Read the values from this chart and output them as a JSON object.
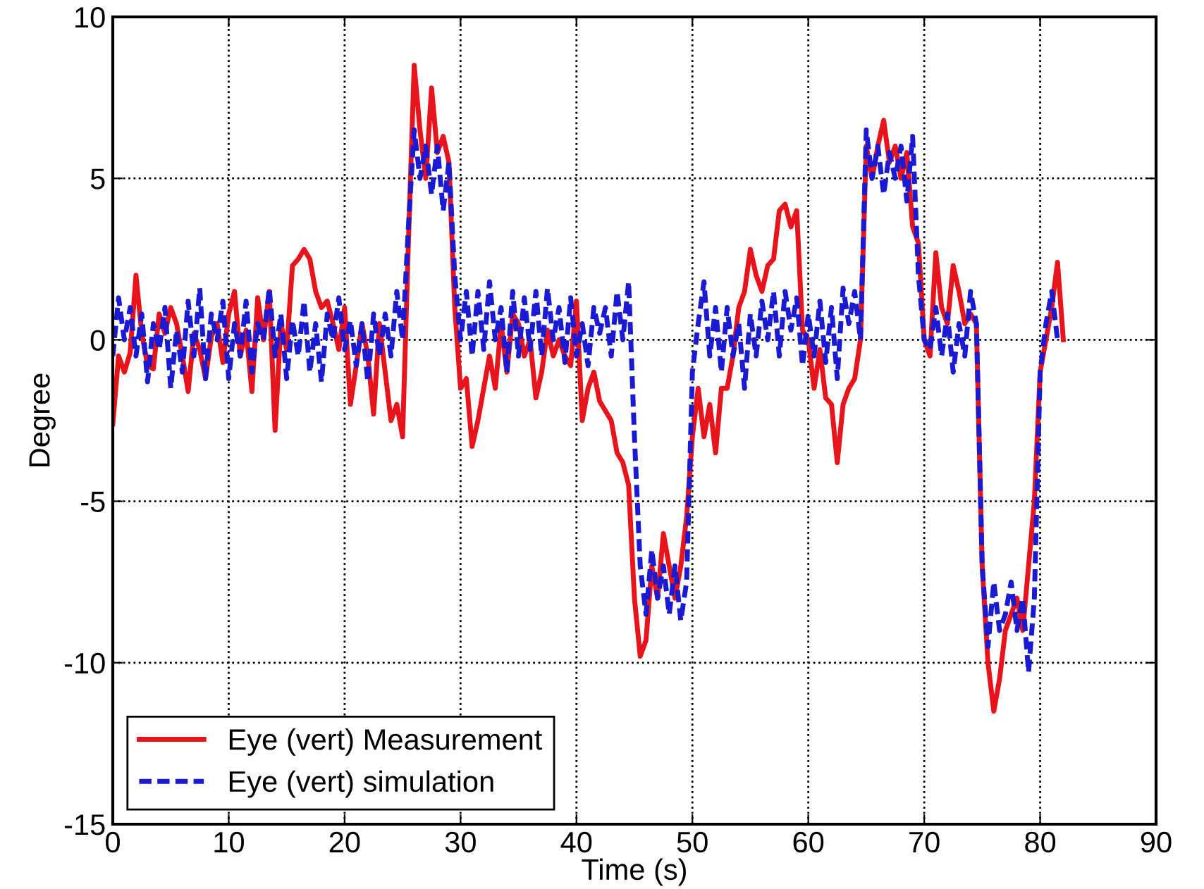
{
  "chart_data": {
    "type": "line",
    "xlabel": "Time (s)",
    "ylabel": "Degree",
    "xlim": [
      0,
      90
    ],
    "xticks": [
      0,
      10,
      20,
      30,
      40,
      50,
      60,
      70,
      80,
      90
    ],
    "ylim": [
      -15,
      10
    ],
    "yticks": [
      -15,
      -10,
      -5,
      0,
      5,
      10
    ],
    "grid": true,
    "legend": "bottom left",
    "marker": "none",
    "series": [
      {
        "name": "Eye (vert) Measurement",
        "color": "#e8141c",
        "line_style": "solid",
        "x": [
          0,
          0.5,
          1,
          1.5,
          2,
          2.5,
          3,
          3.5,
          4,
          4.5,
          5,
          5.5,
          6,
          6.5,
          7,
          7.5,
          8,
          8.5,
          9,
          9.5,
          10,
          10.5,
          11,
          11.5,
          12,
          12.5,
          13,
          13.5,
          14,
          14.5,
          15,
          15.5,
          16,
          16.5,
          17,
          17.5,
          18,
          18.5,
          19,
          19.5,
          20,
          20.5,
          21,
          21.5,
          22,
          22.5,
          23,
          23.5,
          24,
          24.5,
          25,
          25.5,
          26,
          26.5,
          27,
          27.5,
          28,
          28.5,
          29,
          29.5,
          30,
          30.5,
          31,
          31.5,
          32,
          32.5,
          33,
          33.5,
          34,
          34.5,
          35,
          35.5,
          36,
          36.5,
          37,
          37.5,
          38,
          38.5,
          39,
          39.5,
          40,
          40.5,
          41,
          41.5,
          42,
          42.5,
          43,
          43.5,
          44,
          44.5,
          45,
          45.5,
          46,
          46.5,
          47,
          47.5,
          48,
          48.5,
          49,
          49.5,
          50,
          50.5,
          51,
          51.5,
          52,
          52.5,
          53,
          53.5,
          54,
          54.5,
          55,
          55.5,
          56,
          56.5,
          57,
          57.5,
          58,
          58.5,
          59,
          59.5,
          60,
          60.5,
          61,
          61.5,
          62,
          62.5,
          63,
          63.5,
          64,
          64.5,
          65,
          65.5,
          66,
          66.5,
          67,
          67.5,
          68,
          68.5,
          69,
          69.5,
          70,
          70.5,
          71,
          71.5,
          72,
          72.5,
          73,
          73.5,
          74,
          74.5,
          75,
          75.5,
          76,
          76.5,
          77,
          77.5,
          78,
          78.5,
          79,
          79.5,
          80,
          80.5,
          81,
          81.5,
          82
        ],
        "values": [
          -2.6,
          -0.5,
          -1,
          -0.4,
          2,
          0.2,
          -0.8,
          -0.9,
          0.8,
          0.2,
          1,
          0.5,
          -0.5,
          -1.6,
          0.2,
          -0.3,
          -1.2,
          0.1,
          0.5,
          -0.7,
          0.8,
          1.5,
          -0.5,
          0.3,
          -1.6,
          1.3,
          0,
          1.5,
          -2.8,
          0.5,
          -0.3,
          2.3,
          2.5,
          2.8,
          2.5,
          1.5,
          1,
          1.2,
          0.5,
          -0.3,
          1,
          -2,
          -0.8,
          0.5,
          -0.5,
          -2.3,
          0.5,
          -1,
          -2.5,
          -2,
          -3,
          3,
          8.5,
          6.5,
          5,
          7.8,
          5.8,
          6.3,
          5.5,
          1,
          -1.5,
          -1.2,
          -3.3,
          -2.5,
          -1.5,
          -0.5,
          -1.5,
          0.5,
          -1,
          0.8,
          0.5,
          -0.5,
          0,
          -1.8,
          -1,
          0.3,
          -0.5,
          0,
          -0.5,
          -0.8,
          1.2,
          -2.5,
          -1.5,
          -1,
          -1.9,
          -2.2,
          -2.5,
          -3.5,
          -3.8,
          -4.5,
          -8,
          -9.8,
          -9.3,
          -7,
          -8,
          -6,
          -7,
          -8,
          -7,
          -5.5,
          -3,
          -1.5,
          -3,
          -2,
          -3.5,
          -1.5,
          -1.5,
          -0.5,
          1,
          1.5,
          2.8,
          2,
          1.5,
          2.3,
          2.5,
          4,
          4.2,
          3.5,
          4,
          0.3,
          0,
          -1.5,
          -0.3,
          -1.8,
          -2,
          -3.8,
          -2,
          -1.5,
          -1.2,
          0,
          6,
          5,
          6,
          6.8,
          5.5,
          6,
          5,
          5.8,
          3.5,
          3,
          0,
          -0.5,
          2.7,
          1,
          0.5,
          2.3,
          1.5,
          0.5,
          0.8,
          0.5,
          -7,
          -10,
          -11.5,
          -10.5,
          -9,
          -8.5,
          -8,
          -9,
          -7,
          -5,
          -1,
          0,
          1,
          2.4,
          0
        ]
      },
      {
        "name": "Eye (vert) simulation",
        "color": "#1a1ad2",
        "line_style": "dashed",
        "x": [
          0,
          0.5,
          1,
          1.5,
          2,
          2.5,
          3,
          3.5,
          4,
          4.5,
          5,
          5.5,
          6,
          6.5,
          7,
          7.5,
          8,
          8.5,
          9,
          9.5,
          10,
          10.5,
          11,
          11.5,
          12,
          12.5,
          13,
          13.5,
          14,
          14.5,
          15,
          15.5,
          16,
          16.5,
          17,
          17.5,
          18,
          18.5,
          19,
          19.5,
          20,
          20.5,
          21,
          21.5,
          22,
          22.5,
          23,
          23.5,
          24,
          24.5,
          25,
          25.5,
          26,
          26.5,
          27,
          27.5,
          28,
          28.5,
          29,
          29.5,
          30,
          30.5,
          31,
          31.5,
          32,
          32.5,
          33,
          33.5,
          34,
          34.5,
          35,
          35.5,
          36,
          36.5,
          37,
          37.5,
          38,
          38.5,
          39,
          39.5,
          40,
          40.5,
          41,
          41.5,
          42,
          42.5,
          43,
          43.5,
          44,
          44.5,
          45,
          45.5,
          46,
          46.5,
          47,
          47.5,
          48,
          48.5,
          49,
          49.5,
          50,
          50.5,
          51,
          51.5,
          52,
          52.5,
          53,
          53.5,
          54,
          54.5,
          55,
          55.5,
          56,
          56.5,
          57,
          57.5,
          58,
          58.5,
          59,
          59.5,
          60,
          60.5,
          61,
          61.5,
          62,
          62.5,
          63,
          63.5,
          64,
          64.5,
          65,
          65.5,
          66,
          66.5,
          67,
          67.5,
          68,
          68.5,
          69,
          69.5,
          70,
          70.5,
          71,
          71.5,
          72,
          72.5,
          73,
          73.5,
          74,
          74.5,
          75,
          75.5,
          76,
          76.5,
          77,
          77.5,
          78,
          78.5,
          79,
          79.5,
          80,
          80.5,
          81,
          81.5
        ],
        "values": [
          -0.5,
          1.3,
          0,
          1,
          -0.5,
          0.8,
          -1.3,
          0.5,
          -0.3,
          1,
          -1.5,
          0.3,
          -1,
          1.2,
          -0.5,
          1.6,
          -1.2,
          0.8,
          0,
          1.2,
          -1.2,
          0.5,
          -0.5,
          1.2,
          -1,
          0.5,
          0,
          1.6,
          -0.5,
          0.8,
          -1.2,
          0.6,
          -0.5,
          1.2,
          -1,
          0.5,
          -1.3,
          0.8,
          0,
          1.3,
          -0.3,
          0.6,
          -0.8,
          0.5,
          -1.3,
          0.8,
          -0.5,
          0.8,
          -0.5,
          1.5,
          0,
          3.5,
          6.5,
          5,
          6,
          4.5,
          6,
          4,
          5.5,
          2,
          0,
          1.5,
          -0.5,
          1.5,
          -0.3,
          1.8,
          0,
          1,
          -1,
          1.5,
          -0.5,
          1.3,
          -0.3,
          1.5,
          -0.5,
          1.6,
          0,
          1,
          -0.7,
          1.3,
          -0.5,
          0.5,
          -0.8,
          1,
          0.2,
          1,
          -0.5,
          1.5,
          0,
          1.8,
          -3,
          -7,
          -8.5,
          -6.5,
          -8,
          -7,
          -8.5,
          -7,
          -8.7,
          -7.5,
          -1,
          0.5,
          1.8,
          -0.5,
          1,
          -1,
          1,
          -0.5,
          0.5,
          -1.5,
          0.8,
          -0.5,
          1.2,
          0,
          1.5,
          -0.5,
          1.5,
          0.3,
          1.3,
          -0.8,
          0.8,
          -0.5,
          1.2,
          -0.7,
          1,
          -1.2,
          1.6,
          0.5,
          1.5,
          0,
          6.5,
          5,
          6,
          4.5,
          5.8,
          5,
          6,
          4.3,
          6.3,
          2,
          0,
          -0.3,
          1,
          -0.5,
          0.8,
          -1,
          0.5,
          -0.5,
          1.5,
          0.5,
          -7,
          -9.5,
          -7.5,
          -9,
          -8.5,
          -7.5,
          -9,
          -8,
          -10.3,
          -8,
          -1,
          0.5,
          1.5,
          0
        ]
      }
    ]
  }
}
